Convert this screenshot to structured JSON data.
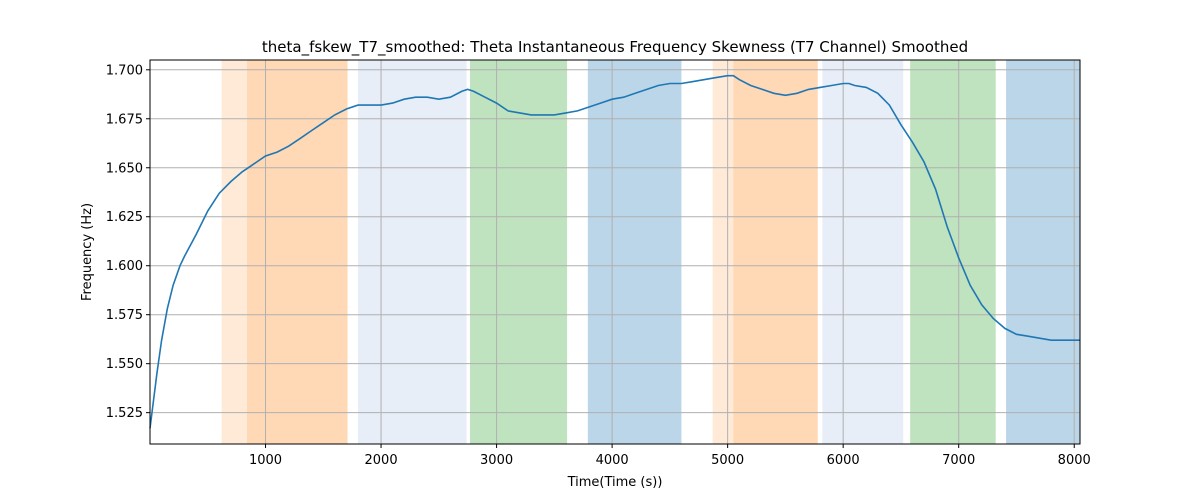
{
  "chart_data": {
    "type": "line",
    "title": "theta_fskew_T7_smoothed: Theta Instantaneous Frequency Skewness (T7 Channel) Smoothed",
    "xlabel": "Time(Time (s))",
    "ylabel": "Frequency (Hz)",
    "xlim": [
      0,
      8050
    ],
    "ylim": [
      1.509,
      1.705
    ],
    "xticks": [
      1000,
      2000,
      3000,
      4000,
      5000,
      6000,
      7000,
      8000
    ],
    "xtick_labels": [
      "1000",
      "2000",
      "3000",
      "4000",
      "5000",
      "6000",
      "7000",
      "8000"
    ],
    "yticks": [
      1.525,
      1.55,
      1.575,
      1.6,
      1.625,
      1.65,
      1.675,
      1.7
    ],
    "ytick_labels": [
      "1.525",
      "1.550",
      "1.575",
      "1.600",
      "1.625",
      "1.650",
      "1.675",
      "1.700"
    ],
    "grid": true,
    "series_color": "#1f77b4",
    "line_x": [
      0,
      60,
      100,
      150,
      200,
      260,
      300,
      400,
      500,
      600,
      700,
      800,
      850,
      900,
      1000,
      1100,
      1200,
      1300,
      1400,
      1500,
      1600,
      1700,
      1800,
      1900,
      2000,
      2100,
      2200,
      2300,
      2400,
      2500,
      2600,
      2700,
      2750,
      2800,
      2900,
      3000,
      3100,
      3200,
      3300,
      3400,
      3500,
      3600,
      3700,
      3800,
      3900,
      4000,
      4100,
      4200,
      4300,
      4400,
      4500,
      4600,
      4700,
      4800,
      4900,
      5000,
      5050,
      5100,
      5200,
      5300,
      5400,
      5500,
      5600,
      5700,
      5800,
      5900,
      6000,
      6050,
      6100,
      6200,
      6300,
      6400,
      6500,
      6600,
      6700,
      6800,
      6900,
      7000,
      7100,
      7200,
      7300,
      7400,
      7500,
      7600,
      7700,
      7800,
      7900,
      8000,
      8050
    ],
    "line_y": [
      1.517,
      1.545,
      1.562,
      1.578,
      1.59,
      1.6,
      1.605,
      1.616,
      1.628,
      1.637,
      1.643,
      1.648,
      1.65,
      1.652,
      1.656,
      1.658,
      1.661,
      1.665,
      1.669,
      1.673,
      1.677,
      1.68,
      1.682,
      1.682,
      1.682,
      1.683,
      1.685,
      1.686,
      1.686,
      1.685,
      1.686,
      1.689,
      1.69,
      1.689,
      1.686,
      1.683,
      1.679,
      1.678,
      1.677,
      1.677,
      1.677,
      1.678,
      1.679,
      1.681,
      1.683,
      1.685,
      1.686,
      1.688,
      1.69,
      1.692,
      1.693,
      1.693,
      1.694,
      1.695,
      1.696,
      1.697,
      1.697,
      1.695,
      1.692,
      1.69,
      1.688,
      1.687,
      1.688,
      1.69,
      1.691,
      1.692,
      1.693,
      1.693,
      1.692,
      1.691,
      1.688,
      1.682,
      1.672,
      1.663,
      1.653,
      1.639,
      1.62,
      1.604,
      1.59,
      1.58,
      1.573,
      1.568,
      1.565,
      1.564,
      1.563,
      1.562,
      1.562,
      1.562,
      1.562
    ],
    "bands": [
      {
        "x0": 620,
        "x1": 840,
        "color": "#ff7f0e",
        "opacity": 0.16
      },
      {
        "x0": 840,
        "x1": 1710,
        "color": "#ff7f0e",
        "opacity": 0.3
      },
      {
        "x0": 1800,
        "x1": 2740,
        "color": "#aec7e8",
        "opacity": 0.3
      },
      {
        "x0": 2770,
        "x1": 3610,
        "color": "#2ca02c",
        "opacity": 0.3
      },
      {
        "x0": 3790,
        "x1": 4600,
        "color": "#1f77b4",
        "opacity": 0.3
      },
      {
        "x0": 4870,
        "x1": 5050,
        "color": "#ff7f0e",
        "opacity": 0.16
      },
      {
        "x0": 5050,
        "x1": 5780,
        "color": "#ff7f0e",
        "opacity": 0.3
      },
      {
        "x0": 5820,
        "x1": 6520,
        "color": "#aec7e8",
        "opacity": 0.3
      },
      {
        "x0": 6580,
        "x1": 7320,
        "color": "#2ca02c",
        "opacity": 0.3
      },
      {
        "x0": 7410,
        "x1": 8050,
        "color": "#1f77b4",
        "opacity": 0.3
      }
    ]
  }
}
